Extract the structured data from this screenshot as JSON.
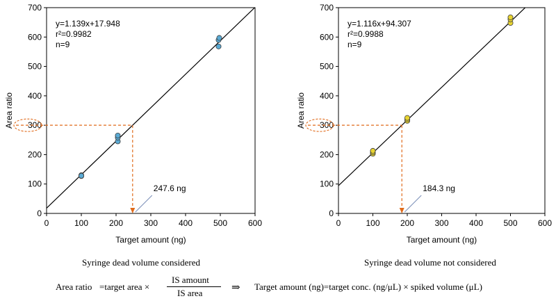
{
  "figure_note": {
    "left_caption": "Syringe dead volume considered",
    "right_caption": "Syringe dead volume not considered"
  },
  "formula": {
    "left_lhs": "Area ratio",
    "left_eq": "=target area ×",
    "numerator": "IS amount",
    "denominator": "IS area",
    "implies": "⇒",
    "right": "Target amount (ng)=target conc. (ng/μL) × spiked volume (μL)"
  },
  "colors": {
    "line": "#000000",
    "guide": "#e06a1a",
    "left_points": "#5aaad4",
    "right_points": "#e8d431",
    "pointer": "#7b8fb8"
  },
  "chart_data": [
    {
      "type": "scatter",
      "xlabel": "Target amount (ng)",
      "ylabel": "Area ratio",
      "xlim": [
        0,
        600
      ],
      "ylim": [
        0,
        700
      ],
      "xticks": [
        0,
        100,
        200,
        300,
        400,
        500,
        600
      ],
      "yticks": [
        0,
        100,
        200,
        300,
        400,
        500,
        600,
        700
      ],
      "grid": false,
      "annotation_lines": [
        "y=1.139x+17.948",
        "r²=0.9982",
        "n=9"
      ],
      "fit": {
        "slope": 1.139,
        "intercept": 17.948
      },
      "points": [
        [
          100,
          127
        ],
        [
          100,
          130
        ],
        [
          100,
          128
        ],
        [
          205,
          245
        ],
        [
          205,
          258
        ],
        [
          205,
          265
        ],
        [
          495,
          568
        ],
        [
          495,
          590
        ],
        [
          497,
          597
        ]
      ],
      "guide": {
        "y": 300,
        "x": 247.6,
        "label": "247.6 ng"
      }
    },
    {
      "type": "scatter",
      "xlabel": "Target amount (ng)",
      "ylabel": "Area ratio",
      "xlim": [
        0,
        600
      ],
      "ylim": [
        0,
        700
      ],
      "xticks": [
        0,
        100,
        200,
        300,
        400,
        500,
        600
      ],
      "yticks": [
        0,
        100,
        200,
        300,
        400,
        500,
        600,
        700
      ],
      "grid": false,
      "annotation_lines": [
        "y=1.116x+94.307",
        "r²=0.9988",
        "n=9"
      ],
      "fit": {
        "slope": 1.116,
        "intercept": 94.307
      },
      "points": [
        [
          100,
          203
        ],
        [
          100,
          208
        ],
        [
          100,
          213
        ],
        [
          200,
          315
        ],
        [
          200,
          320
        ],
        [
          200,
          325
        ],
        [
          500,
          648
        ],
        [
          500,
          660
        ],
        [
          500,
          667
        ]
      ],
      "guide": {
        "y": 300,
        "x": 184.3,
        "label": "184.3 ng"
      }
    }
  ]
}
